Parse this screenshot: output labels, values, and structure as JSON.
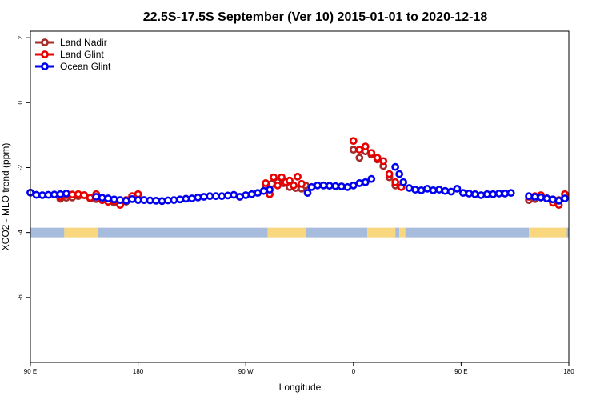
{
  "chart_data": {
    "type": "scatter",
    "title": "22.5S-17.5S September (Ver 10)   2015-01-01 to 2020-12-18",
    "xlabel": "Longitude",
    "ylabel": "XCO2 - MLO trend (ppm)",
    "xlim": [
      -90,
      180
    ],
    "ylim": [
      -8,
      2.2
    ],
    "x_ticks": [
      {
        "value": -90,
        "label": "90 E"
      },
      {
        "value": -36,
        "label": "180"
      },
      {
        "value": 18,
        "label": "90 W"
      },
      {
        "value": 72,
        "label": "0"
      },
      {
        "value": 126,
        "label": "90 E"
      },
      {
        "value": 180,
        "label": "180"
      }
    ],
    "y_ticks": [
      {
        "value": 2,
        "label": "2"
      },
      {
        "value": 0,
        "label": "0"
      },
      {
        "value": -2,
        "label": "-2"
      },
      {
        "value": -4,
        "label": "-4"
      },
      {
        "value": -6,
        "label": "-6"
      }
    ],
    "grid": false,
    "legend_position": "top-left",
    "land_color": "#f9d77e",
    "ocean_color": "#a7bcdc",
    "series": [
      {
        "name": "Land Nadir",
        "color": "#a52a2a",
        "points": [
          [
            -75,
            -2.96
          ],
          [
            -72,
            -2.93
          ],
          [
            -69,
            -2.92
          ],
          [
            -66,
            -2.88
          ],
          [
            -63,
            -2.85
          ],
          [
            -60,
            -2.95
          ],
          [
            -57,
            -2.97
          ],
          [
            -54,
            -3.0
          ],
          [
            -51,
            -3.05
          ],
          [
            -48,
            -3.08
          ],
          [
            -45,
            -3.12
          ],
          [
            -42,
            -3.05
          ],
          [
            -39,
            -2.92
          ],
          [
            -36,
            -2.95
          ],
          [
            28,
            -2.62
          ],
          [
            31,
            -2.5
          ],
          [
            34,
            -2.45
          ],
          [
            37,
            -2.48
          ],
          [
            40,
            -2.6
          ],
          [
            43,
            -2.63
          ],
          [
            46,
            -2.65
          ],
          [
            48,
            -2.55
          ],
          [
            72,
            -1.45
          ],
          [
            75,
            -1.7
          ],
          [
            78,
            -1.5
          ],
          [
            81,
            -1.6
          ],
          [
            84,
            -1.75
          ],
          [
            87,
            -1.95
          ],
          [
            90,
            -2.3
          ],
          [
            93,
            -2.55
          ],
          [
            160,
            -3.0
          ],
          [
            163,
            -2.97
          ],
          [
            166,
            -2.92
          ],
          [
            169,
            -2.95
          ],
          [
            172,
            -2.98
          ],
          [
            175,
            -3.0
          ],
          [
            178,
            -2.93
          ]
        ]
      },
      {
        "name": "Land Glint",
        "color": "#e80000",
        "points": [
          [
            -75,
            -2.9
          ],
          [
            -72,
            -2.85
          ],
          [
            -69,
            -2.83
          ],
          [
            -66,
            -2.82
          ],
          [
            -63,
            -2.85
          ],
          [
            -60,
            -2.93
          ],
          [
            -57,
            -2.82
          ],
          [
            -54,
            -3.0
          ],
          [
            -51,
            -3.05
          ],
          [
            -48,
            -3.02
          ],
          [
            -45,
            -3.15
          ],
          [
            -42,
            -3.0
          ],
          [
            -39,
            -2.88
          ],
          [
            -36,
            -2.82
          ],
          [
            28,
            -2.48
          ],
          [
            30,
            -2.82
          ],
          [
            32,
            -2.3
          ],
          [
            34,
            -2.55
          ],
          [
            36,
            -2.3
          ],
          [
            38,
            -2.45
          ],
          [
            40,
            -2.4
          ],
          [
            42,
            -2.55
          ],
          [
            44,
            -2.28
          ],
          [
            46,
            -2.5
          ],
          [
            72,
            -1.18
          ],
          [
            75,
            -1.45
          ],
          [
            78,
            -1.35
          ],
          [
            81,
            -1.55
          ],
          [
            84,
            -1.7
          ],
          [
            87,
            -1.8
          ],
          [
            90,
            -2.2
          ],
          [
            93,
            -2.45
          ],
          [
            96,
            -2.6
          ],
          [
            160,
            -2.9
          ],
          [
            163,
            -2.88
          ],
          [
            166,
            -2.85
          ],
          [
            169,
            -2.95
          ],
          [
            172,
            -3.08
          ],
          [
            175,
            -3.15
          ],
          [
            178,
            -2.82
          ]
        ]
      },
      {
        "name": "Ocean Glint",
        "color": "#0000ee",
        "points": [
          [
            -90,
            -2.77
          ],
          [
            -87,
            -2.84
          ],
          [
            -84,
            -2.85
          ],
          [
            -81,
            -2.84
          ],
          [
            -78,
            -2.83
          ],
          [
            -75,
            -2.82
          ],
          [
            -72,
            -2.8
          ],
          [
            -57,
            -2.9
          ],
          [
            -54,
            -2.93
          ],
          [
            -51,
            -2.95
          ],
          [
            -48,
            -2.98
          ],
          [
            -45,
            -3.0
          ],
          [
            -42,
            -3.02
          ],
          [
            -39,
            -2.97
          ],
          [
            -36,
            -3.0
          ],
          [
            -33,
            -3.0
          ],
          [
            -30,
            -3.01
          ],
          [
            -27,
            -3.02
          ],
          [
            -24,
            -3.03
          ],
          [
            -21,
            -3.01
          ],
          [
            -18,
            -3.0
          ],
          [
            -15,
            -2.98
          ],
          [
            -12,
            -2.96
          ],
          [
            -9,
            -2.95
          ],
          [
            -6,
            -2.92
          ],
          [
            -3,
            -2.9
          ],
          [
            0,
            -2.88
          ],
          [
            3,
            -2.88
          ],
          [
            6,
            -2.88
          ],
          [
            9,
            -2.86
          ],
          [
            12,
            -2.84
          ],
          [
            15,
            -2.9
          ],
          [
            18,
            -2.85
          ],
          [
            21,
            -2.82
          ],
          [
            24,
            -2.78
          ],
          [
            27,
            -2.72
          ],
          [
            30,
            -2.68
          ],
          [
            49,
            -2.78
          ],
          [
            51,
            -2.6
          ],
          [
            54,
            -2.55
          ],
          [
            57,
            -2.55
          ],
          [
            60,
            -2.56
          ],
          [
            63,
            -2.57
          ],
          [
            66,
            -2.58
          ],
          [
            69,
            -2.6
          ],
          [
            72,
            -2.55
          ],
          [
            75,
            -2.48
          ],
          [
            78,
            -2.45
          ],
          [
            81,
            -2.35
          ],
          [
            93,
            -1.98
          ],
          [
            95,
            -2.2
          ],
          [
            97,
            -2.45
          ],
          [
            100,
            -2.63
          ],
          [
            103,
            -2.68
          ],
          [
            106,
            -2.7
          ],
          [
            109,
            -2.65
          ],
          [
            112,
            -2.7
          ],
          [
            115,
            -2.68
          ],
          [
            118,
            -2.72
          ],
          [
            121,
            -2.74
          ],
          [
            124,
            -2.65
          ],
          [
            127,
            -2.78
          ],
          [
            130,
            -2.8
          ],
          [
            133,
            -2.82
          ],
          [
            136,
            -2.85
          ],
          [
            139,
            -2.82
          ],
          [
            142,
            -2.82
          ],
          [
            145,
            -2.8
          ],
          [
            148,
            -2.8
          ],
          [
            151,
            -2.78
          ],
          [
            160,
            -2.88
          ],
          [
            163,
            -2.9
          ],
          [
            166,
            -2.92
          ],
          [
            169,
            -2.95
          ],
          [
            172,
            -2.98
          ],
          [
            175,
            -3.02
          ],
          [
            178,
            -2.95
          ]
        ]
      }
    ],
    "surface_band": {
      "y_center": -4.0,
      "segments": [
        {
          "type": "ocean",
          "x": [
            -90,
            -73
          ]
        },
        {
          "type": "land",
          "x": [
            -73,
            -56
          ]
        },
        {
          "type": "ocean",
          "x": [
            -56,
            29
          ]
        },
        {
          "type": "land",
          "x": [
            29,
            48
          ]
        },
        {
          "type": "ocean",
          "x": [
            48,
            79
          ]
        },
        {
          "type": "land",
          "x": [
            79,
            93
          ]
        },
        {
          "type": "ocean",
          "x": [
            93,
            95
          ]
        },
        {
          "type": "land",
          "x": [
            95,
            98
          ]
        },
        {
          "type": "ocean",
          "x": [
            98,
            160
          ]
        },
        {
          "type": "land",
          "x": [
            160,
            179
          ]
        },
        {
          "type": "ocean",
          "x": [
            179,
            180
          ]
        }
      ]
    }
  }
}
